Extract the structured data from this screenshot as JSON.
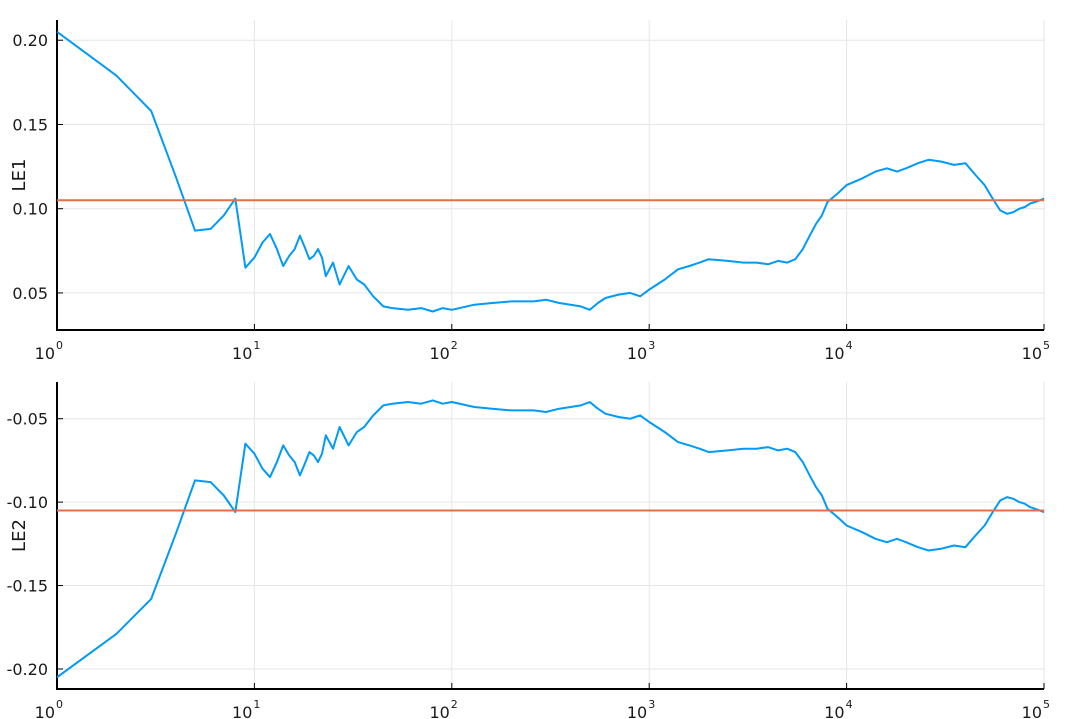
{
  "colors": {
    "series_line": "#009AF9",
    "reference_line": "#E26F46",
    "grid": "#e6e6e6",
    "axis": "#000000"
  },
  "chart_data": [
    {
      "type": "line",
      "ylabel": "LE1",
      "xscale": "log10",
      "xlim": [
        1,
        100000
      ],
      "ylim": [
        0.028,
        0.212
      ],
      "xticks": [
        {
          "value": 1,
          "base": "10",
          "exp": "0"
        },
        {
          "value": 10,
          "base": "10",
          "exp": "1"
        },
        {
          "value": 100,
          "base": "10",
          "exp": "2"
        },
        {
          "value": 1000,
          "base": "10",
          "exp": "3"
        },
        {
          "value": 10000,
          "base": "10",
          "exp": "4"
        },
        {
          "value": 100000,
          "base": "10",
          "exp": "5"
        }
      ],
      "yticks": [
        {
          "value": 0.05,
          "label": "0.05"
        },
        {
          "value": 0.1,
          "label": "0.10"
        },
        {
          "value": 0.15,
          "label": "0.15"
        },
        {
          "value": 0.2,
          "label": "0.20"
        }
      ],
      "grid": true,
      "legend": "none",
      "reference_line": {
        "y": 0.105
      },
      "series": [
        {
          "x": [
            1,
            2,
            3,
            4,
            5,
            6,
            7,
            8,
            9,
            10,
            11,
            12,
            13,
            14,
            15,
            16,
            17,
            18,
            19,
            20,
            21,
            22,
            23,
            25,
            27,
            30,
            33,
            36,
            40,
            45,
            50,
            60,
            70,
            80,
            90,
            100,
            130,
            160,
            200,
            260,
            300,
            350,
            400,
            450,
            500,
            550,
            600,
            700,
            800,
            900,
            1000,
            1200,
            1400,
            1600,
            1800,
            2000,
            2500,
            3000,
            3500,
            4000,
            4500,
            5000,
            5500,
            6000,
            6500,
            7000,
            7500,
            8000,
            9000,
            10000,
            12000,
            14000,
            16000,
            18000,
            20000,
            23000,
            26000,
            30000,
            35000,
            40000,
            45000,
            50000,
            55000,
            60000,
            65000,
            70000,
            75000,
            80000,
            85000,
            90000,
            95000,
            100000
          ],
          "y": [
            0.205,
            0.179,
            0.158,
            0.119,
            0.087,
            0.088,
            0.096,
            0.106,
            0.065,
            0.071,
            0.08,
            0.085,
            0.076,
            0.066,
            0.072,
            0.076,
            0.084,
            0.077,
            0.07,
            0.072,
            0.076,
            0.071,
            0.06,
            0.068,
            0.055,
            0.066,
            0.058,
            0.055,
            0.048,
            0.042,
            0.041,
            0.04,
            0.041,
            0.039,
            0.041,
            0.04,
            0.043,
            0.044,
            0.045,
            0.045,
            0.046,
            0.044,
            0.043,
            0.042,
            0.04,
            0.044,
            0.047,
            0.049,
            0.05,
            0.048,
            0.052,
            0.058,
            0.064,
            0.066,
            0.068,
            0.07,
            0.069,
            0.068,
            0.068,
            0.067,
            0.069,
            0.068,
            0.07,
            0.076,
            0.084,
            0.091,
            0.096,
            0.104,
            0.109,
            0.114,
            0.118,
            0.122,
            0.124,
            0.122,
            0.124,
            0.127,
            0.129,
            0.128,
            0.126,
            0.127,
            0.12,
            0.114,
            0.106,
            0.099,
            0.097,
            0.098,
            0.1,
            0.101,
            0.103,
            0.104,
            0.105,
            0.106
          ]
        }
      ]
    },
    {
      "type": "line",
      "ylabel": "LE2",
      "xscale": "log10",
      "xlim": [
        1,
        100000
      ],
      "ylim": [
        -0.212,
        -0.028
      ],
      "xticks": [
        {
          "value": 1,
          "base": "10",
          "exp": "0"
        },
        {
          "value": 10,
          "base": "10",
          "exp": "1"
        },
        {
          "value": 100,
          "base": "10",
          "exp": "2"
        },
        {
          "value": 1000,
          "base": "10",
          "exp": "3"
        },
        {
          "value": 10000,
          "base": "10",
          "exp": "4"
        },
        {
          "value": 100000,
          "base": "10",
          "exp": "5"
        }
      ],
      "yticks": [
        {
          "value": -0.05,
          "label": "-0.05"
        },
        {
          "value": -0.1,
          "label": "-0.10"
        },
        {
          "value": -0.15,
          "label": "-0.15"
        },
        {
          "value": -0.2,
          "label": "-0.20"
        }
      ],
      "grid": true,
      "legend": "none",
      "reference_line": {
        "y": -0.105
      },
      "series": [
        {
          "x": [
            1,
            2,
            3,
            4,
            5,
            6,
            7,
            8,
            9,
            10,
            11,
            12,
            13,
            14,
            15,
            16,
            17,
            18,
            19,
            20,
            21,
            22,
            23,
            25,
            27,
            30,
            33,
            36,
            40,
            45,
            50,
            60,
            70,
            80,
            90,
            100,
            130,
            160,
            200,
            260,
            300,
            350,
            400,
            450,
            500,
            550,
            600,
            700,
            800,
            900,
            1000,
            1200,
            1400,
            1600,
            1800,
            2000,
            2500,
            3000,
            3500,
            4000,
            4500,
            5000,
            5500,
            6000,
            6500,
            7000,
            7500,
            8000,
            9000,
            10000,
            12000,
            14000,
            16000,
            18000,
            20000,
            23000,
            26000,
            30000,
            35000,
            40000,
            45000,
            50000,
            55000,
            60000,
            65000,
            70000,
            75000,
            80000,
            85000,
            90000,
            95000,
            100000
          ],
          "y": [
            -0.205,
            -0.179,
            -0.158,
            -0.119,
            -0.087,
            -0.088,
            -0.096,
            -0.106,
            -0.065,
            -0.071,
            -0.08,
            -0.085,
            -0.076,
            -0.066,
            -0.072,
            -0.076,
            -0.084,
            -0.077,
            -0.07,
            -0.072,
            -0.076,
            -0.071,
            -0.06,
            -0.068,
            -0.055,
            -0.066,
            -0.058,
            -0.055,
            -0.048,
            -0.042,
            -0.041,
            -0.04,
            -0.041,
            -0.039,
            -0.041,
            -0.04,
            -0.043,
            -0.044,
            -0.045,
            -0.045,
            -0.046,
            -0.044,
            -0.043,
            -0.042,
            -0.04,
            -0.044,
            -0.047,
            -0.049,
            -0.05,
            -0.048,
            -0.052,
            -0.058,
            -0.064,
            -0.066,
            -0.068,
            -0.07,
            -0.069,
            -0.068,
            -0.068,
            -0.067,
            -0.069,
            -0.068,
            -0.07,
            -0.076,
            -0.084,
            -0.091,
            -0.096,
            -0.104,
            -0.109,
            -0.114,
            -0.118,
            -0.122,
            -0.124,
            -0.122,
            -0.124,
            -0.127,
            -0.129,
            -0.128,
            -0.126,
            -0.127,
            -0.12,
            -0.114,
            -0.106,
            -0.099,
            -0.097,
            -0.098,
            -0.1,
            -0.101,
            -0.103,
            -0.104,
            -0.105,
            -0.106
          ]
        }
      ]
    }
  ]
}
